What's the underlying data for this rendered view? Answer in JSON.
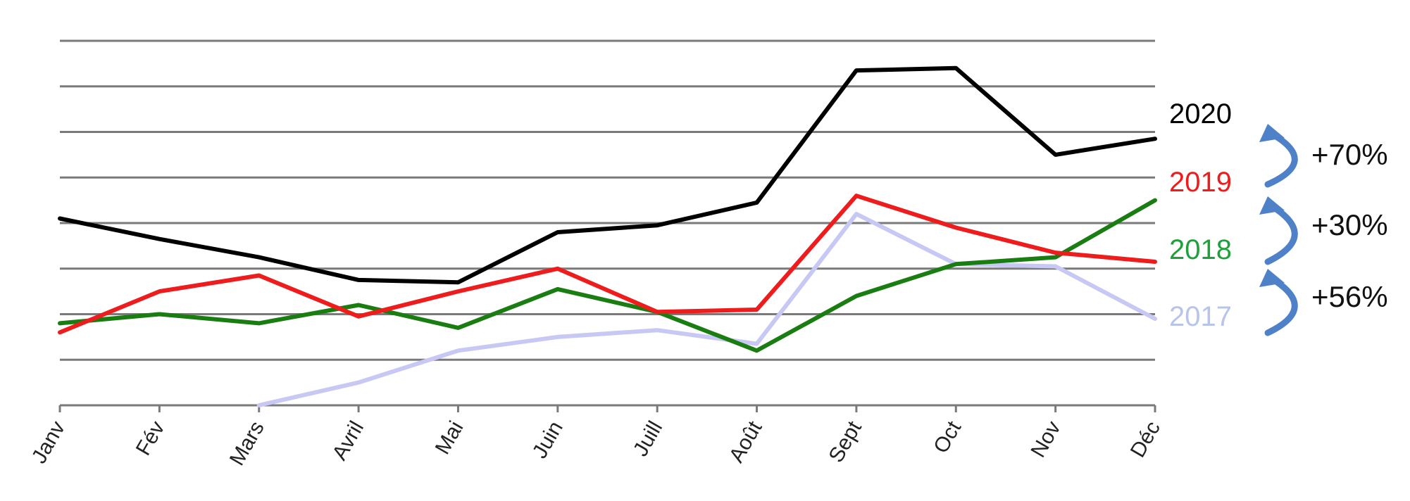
{
  "chart_data": {
    "type": "line",
    "categories": [
      "Janv",
      "Fév",
      "Mars",
      "Avril",
      "Mai",
      "Juin",
      "Juill",
      "Août",
      "Sept",
      "Oct",
      "Nov",
      "Déc"
    ],
    "ylim": [
      0,
      8
    ],
    "grid": true,
    "series": [
      {
        "name": "2017",
        "color": "#c8c8f4",
        "values": [
          null,
          null,
          0.0,
          0.5,
          1.2,
          1.5,
          1.65,
          1.35,
          4.2,
          3.1,
          3.05,
          1.9
        ]
      },
      {
        "name": "2018",
        "color": "#1a7d12",
        "values": [
          1.8,
          2.0,
          1.8,
          2.2,
          1.7,
          2.55,
          2.05,
          1.2,
          2.4,
          3.1,
          3.25,
          4.5
        ]
      },
      {
        "name": "2019",
        "color": "#ee1c1c",
        "values": [
          1.6,
          2.5,
          2.85,
          1.95,
          2.5,
          3.0,
          2.05,
          2.1,
          4.6,
          3.9,
          3.35,
          3.15
        ]
      },
      {
        "name": "2020",
        "color": "#000000",
        "values": [
          4.1,
          3.65,
          3.25,
          2.75,
          2.7,
          3.8,
          3.95,
          4.45,
          7.35,
          7.4,
          5.5,
          5.85
        ]
      }
    ],
    "annotations": [
      {
        "text": "+70%",
        "from": "2019",
        "to": "2020"
      },
      {
        "text": "+30%",
        "from": "2018",
        "to": "2019"
      },
      {
        "text": "+56%",
        "from": "2017",
        "to": "2018"
      }
    ],
    "arrow_color": "#4f81c8"
  }
}
